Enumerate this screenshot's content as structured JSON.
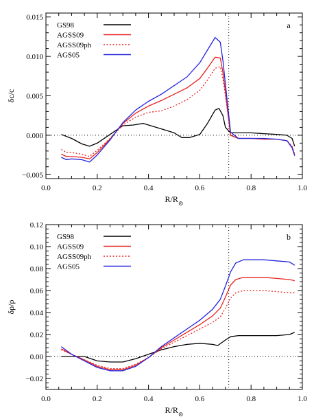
{
  "chart_data": [
    {
      "type": "line",
      "panel_label": "a",
      "xlabel": "R/R",
      "xlabel_sub": "⊙",
      "ylabel": "δc/c",
      "xlim": [
        0.0,
        1.0
      ],
      "ylim": [
        -0.0055,
        0.0155
      ],
      "xticks": [
        0.0,
        0.2,
        0.4,
        0.6,
        0.8,
        1.0
      ],
      "xtick_labels": [
        "0.0",
        "0.2",
        "0.4",
        "0.6",
        "0.8",
        "1.0"
      ],
      "yticks": [
        -0.005,
        0.0,
        0.005,
        0.01,
        0.015
      ],
      "ytick_labels": [
        "−0.005",
        "0.000",
        "0.005",
        "0.010",
        "0.015"
      ],
      "hline": 0.0,
      "vline": 0.713,
      "legend_position": "top-left",
      "series": [
        {
          "name": "GS98",
          "color": "#000000",
          "dash": "solid",
          "x": [
            0.06,
            0.1,
            0.14,
            0.17,
            0.2,
            0.25,
            0.3,
            0.34,
            0.38,
            0.42,
            0.46,
            0.5,
            0.53,
            0.56,
            0.6,
            0.63,
            0.66,
            0.675,
            0.69,
            0.7,
            0.72,
            0.75,
            0.8,
            0.85,
            0.9,
            0.94,
            0.96,
            0.97
          ],
          "y": [
            0.0001,
            -0.0004,
            -0.0011,
            -0.0014,
            -0.001,
            0.0001,
            0.0012,
            0.0013,
            0.0015,
            0.0011,
            0.0007,
            0.0003,
            -0.0003,
            -0.0003,
            0.0001,
            0.0015,
            0.0032,
            0.0034,
            0.0025,
            0.001,
            0.0003,
            0.0003,
            0.0003,
            0.0002,
            0.0001,
            0.0,
            -0.0004,
            -0.0014
          ]
        },
        {
          "name": "AGSS09",
          "color": "#e8211d",
          "dash": "solid",
          "x": [
            0.06,
            0.08,
            0.1,
            0.14,
            0.17,
            0.2,
            0.25,
            0.3,
            0.35,
            0.4,
            0.45,
            0.5,
            0.55,
            0.6,
            0.63,
            0.66,
            0.68,
            0.69,
            0.7,
            0.72,
            0.75,
            0.8,
            0.85,
            0.9,
            0.94,
            0.96,
            0.97
          ],
          "y": [
            -0.0024,
            -0.0027,
            -0.0027,
            -0.0028,
            -0.003,
            -0.0022,
            -0.0005,
            0.0015,
            0.0028,
            0.0037,
            0.0044,
            0.0052,
            0.006,
            0.0072,
            0.0085,
            0.0099,
            0.0098,
            0.008,
            0.0055,
            0.0,
            -0.0004,
            -0.0004,
            -0.0005,
            -0.0005,
            -0.0007,
            -0.0015,
            -0.0025
          ]
        },
        {
          "name": "AGSS09ph",
          "color": "#e8211d",
          "dash": "dotted",
          "x": [
            0.06,
            0.08,
            0.1,
            0.14,
            0.17,
            0.2,
            0.25,
            0.3,
            0.35,
            0.4,
            0.45,
            0.5,
            0.55,
            0.6,
            0.63,
            0.66,
            0.68,
            0.69,
            0.7,
            0.72,
            0.75,
            0.8,
            0.85,
            0.9,
            0.94,
            0.96,
            0.97
          ],
          "y": [
            -0.0018,
            -0.0022,
            -0.0022,
            -0.0024,
            -0.0027,
            -0.0019,
            -0.0004,
            0.0013,
            0.0023,
            0.0029,
            0.0031,
            0.0037,
            0.0045,
            0.0057,
            0.007,
            0.0085,
            0.0087,
            0.0072,
            0.005,
            0.0,
            -0.0004,
            -0.0004,
            -0.0005,
            -0.0005,
            -0.0007,
            -0.0014,
            -0.0024
          ]
        },
        {
          "name": "AGS05",
          "color": "#2323e0",
          "dash": "solid",
          "x": [
            0.06,
            0.08,
            0.1,
            0.14,
            0.17,
            0.2,
            0.25,
            0.3,
            0.35,
            0.4,
            0.45,
            0.5,
            0.55,
            0.6,
            0.63,
            0.66,
            0.68,
            0.69,
            0.7,
            0.72,
            0.75,
            0.8,
            0.85,
            0.9,
            0.94,
            0.96,
            0.97
          ],
          "y": [
            -0.0028,
            -0.0031,
            -0.003,
            -0.0031,
            -0.0034,
            -0.0025,
            -0.0006,
            0.0016,
            0.0032,
            0.0043,
            0.0052,
            0.0063,
            0.0074,
            0.0092,
            0.0108,
            0.0124,
            0.0118,
            0.0095,
            0.0065,
            0.0004,
            -0.0004,
            -0.0004,
            -0.0004,
            -0.0005,
            -0.0007,
            -0.0016,
            -0.0026
          ]
        }
      ]
    },
    {
      "type": "line",
      "panel_label": "b",
      "xlabel": "R/R",
      "xlabel_sub": "⊙",
      "ylabel": "δρ/ρ",
      "xlim": [
        0.0,
        1.0
      ],
      "ylim": [
        -0.03,
        0.12
      ],
      "xticks": [
        0.0,
        0.2,
        0.4,
        0.6,
        0.8,
        1.0
      ],
      "xtick_labels": [
        "0.0",
        "0.2",
        "0.4",
        "0.6",
        "0.8",
        "1.0"
      ],
      "yticks": [
        -0.02,
        0.0,
        0.02,
        0.04,
        0.06,
        0.08,
        0.1,
        0.12
      ],
      "ytick_labels": [
        "−0.02",
        "0.00",
        "0.02",
        "0.04",
        "0.06",
        "0.08",
        "0.10",
        "0.12"
      ],
      "hline": 0.0,
      "vline": 0.713,
      "legend_position": "top-left",
      "series": [
        {
          "name": "GS98",
          "color": "#000000",
          "dash": "solid",
          "x": [
            0.06,
            0.1,
            0.15,
            0.2,
            0.25,
            0.3,
            0.35,
            0.4,
            0.45,
            0.5,
            0.55,
            0.6,
            0.65,
            0.67,
            0.7,
            0.72,
            0.75,
            0.8,
            0.85,
            0.9,
            0.95,
            0.97
          ],
          "y": [
            0.0,
            0.0,
            0.0,
            -0.004,
            -0.005,
            -0.005,
            -0.002,
            0.002,
            0.006,
            0.009,
            0.011,
            0.012,
            0.011,
            0.01,
            0.015,
            0.018,
            0.019,
            0.019,
            0.019,
            0.019,
            0.02,
            0.022
          ]
        },
        {
          "name": "AGSS09",
          "color": "#e8211d",
          "dash": "solid",
          "x": [
            0.06,
            0.1,
            0.15,
            0.2,
            0.25,
            0.3,
            0.35,
            0.4,
            0.45,
            0.5,
            0.55,
            0.6,
            0.65,
            0.68,
            0.7,
            0.72,
            0.74,
            0.77,
            0.8,
            0.85,
            0.9,
            0.95,
            0.97
          ],
          "y": [
            0.007,
            0.002,
            -0.003,
            -0.009,
            -0.012,
            -0.012,
            -0.008,
            -0.001,
            0.008,
            0.015,
            0.022,
            0.029,
            0.037,
            0.044,
            0.054,
            0.065,
            0.07,
            0.072,
            0.072,
            0.072,
            0.071,
            0.07,
            0.069
          ]
        },
        {
          "name": "AGSS09ph",
          "color": "#e8211d",
          "dash": "dotted",
          "x": [
            0.06,
            0.1,
            0.15,
            0.2,
            0.25,
            0.3,
            0.35,
            0.4,
            0.45,
            0.5,
            0.55,
            0.6,
            0.65,
            0.68,
            0.7,
            0.72,
            0.74,
            0.77,
            0.8,
            0.85,
            0.9,
            0.95,
            0.97
          ],
          "y": [
            0.006,
            0.002,
            -0.003,
            -0.008,
            -0.011,
            -0.011,
            -0.007,
            -0.001,
            0.007,
            0.013,
            0.019,
            0.025,
            0.031,
            0.036,
            0.044,
            0.053,
            0.058,
            0.06,
            0.06,
            0.06,
            0.059,
            0.058,
            0.058
          ]
        },
        {
          "name": "AGS05",
          "color": "#2323e0",
          "dash": "solid",
          "x": [
            0.06,
            0.1,
            0.15,
            0.2,
            0.25,
            0.3,
            0.35,
            0.4,
            0.45,
            0.5,
            0.55,
            0.6,
            0.65,
            0.68,
            0.7,
            0.72,
            0.74,
            0.77,
            0.8,
            0.85,
            0.9,
            0.95,
            0.97
          ],
          "y": [
            0.009,
            0.002,
            -0.004,
            -0.01,
            -0.013,
            -0.013,
            -0.009,
            -0.001,
            0.009,
            0.017,
            0.025,
            0.033,
            0.043,
            0.052,
            0.064,
            0.077,
            0.085,
            0.088,
            0.088,
            0.088,
            0.087,
            0.086,
            0.083
          ]
        }
      ]
    }
  ]
}
